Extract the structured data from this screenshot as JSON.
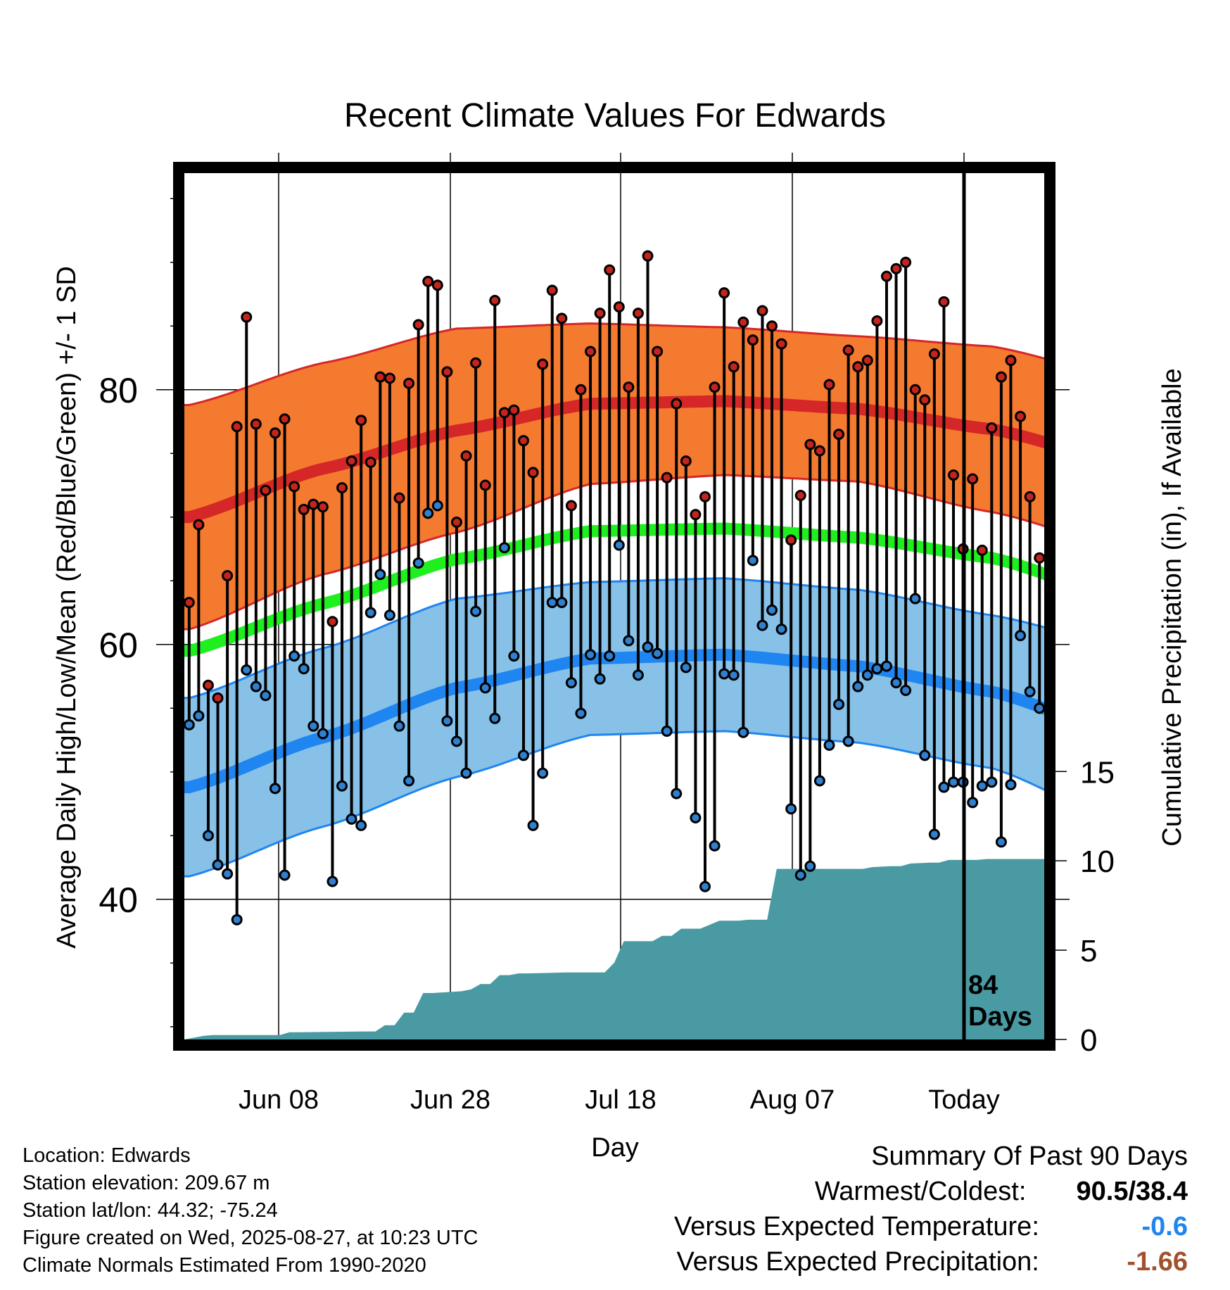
{
  "chart_data": {
    "type": "line",
    "title": "Recent Climate Values For Edwards",
    "xlabel": "Day",
    "ylabel_left": "Average Daily High/Low/Mean (Red/Blue/Green) +/- 1 SD",
    "ylabel_right": "Cumulative Precipitation (in), If Available",
    "x_tick_labels": [
      "Jun 08",
      "Jun 28",
      "Jul 18",
      "Aug 07",
      "Today"
    ],
    "y_ticks_left": [
      40,
      60,
      80
    ],
    "y_ticks_right": [
      0,
      5,
      10,
      15
    ],
    "ylim_left": [
      29,
      97
    ],
    "ylim_right": [
      0,
      48.5
    ],
    "today_marker": "84\nDays",
    "grid": true,
    "normals": {
      "x": [
        0,
        14,
        28,
        42,
        56,
        70,
        84,
        98
      ],
      "high": [
        70,
        73.8,
        76.8,
        78.9,
        79.1,
        78.5,
        76.9,
        74.2
      ],
      "high_sd": [
        8.8,
        8.3,
        8,
        6.3,
        5.8,
        5.7,
        6.5,
        6.7
      ],
      "mean": [
        59.5,
        63.2,
        66.7,
        68.9,
        69.1,
        68.4,
        66.8,
        63.5
      ],
      "low": [
        48.8,
        52.7,
        56.6,
        58.9,
        59.2,
        58.3,
        56.3,
        52.8
      ],
      "low_sd": [
        7,
        7,
        7,
        6,
        6,
        6,
        6,
        7
      ]
    },
    "series": [
      {
        "name": "High",
        "values": [
          63.3,
          69.4,
          56.8,
          55.8,
          65.4,
          77.1,
          85.7,
          77.3,
          72.1,
          76.6,
          77.7,
          72.4,
          70.6,
          71.0,
          70.8,
          61.8,
          72.3,
          74.4,
          77.6,
          74.3,
          81.0,
          80.9,
          71.5,
          80.5,
          85.1,
          88.5,
          88.2,
          81.4,
          69.6,
          74.8,
          82.1,
          72.5,
          87.0,
          78.2,
          78.4,
          76.0,
          73.5,
          82.0,
          87.8,
          85.6,
          70.9,
          80.0,
          83.0,
          86.0,
          89.4,
          86.5,
          80.2,
          86.0,
          90.5,
          83.0,
          73.1,
          78.9,
          74.4,
          70.2,
          71.6,
          80.2,
          87.6,
          81.8,
          85.3,
          83.9,
          86.2,
          85.0,
          83.6,
          68.2,
          71.7,
          75.7,
          75.2,
          80.4,
          76.5,
          83.1,
          81.8,
          82.3,
          85.4,
          88.9,
          89.5,
          90.0,
          80.0,
          79.2,
          82.8,
          86.9,
          73.3,
          67.5,
          73.0,
          67.4,
          77.0,
          81.0,
          82.3,
          77.9,
          71.6,
          66.8
        ]
      },
      {
        "name": "Low",
        "values": [
          53.7,
          54.4,
          45.0,
          42.7,
          42.0,
          38.4,
          58.0,
          56.7,
          56.0,
          48.7,
          41.9,
          59.1,
          58.1,
          53.6,
          53.0,
          41.4,
          48.9,
          46.3,
          45.8,
          62.5,
          65.5,
          62.3,
          53.6,
          49.3,
          66.4,
          70.3,
          70.9,
          54.0,
          52.4,
          49.9,
          62.6,
          56.6,
          54.2,
          67.6,
          59.1,
          51.3,
          45.8,
          49.9,
          63.3,
          63.3,
          57.0,
          54.6,
          59.2,
          57.3,
          59.1,
          67.8,
          60.3,
          57.6,
          59.8,
          59.3,
          53.2,
          48.3,
          58.2,
          46.4,
          41.0,
          44.2,
          57.7,
          57.6,
          53.1,
          66.6,
          61.5,
          62.7,
          61.2,
          47.1,
          41.9,
          42.6,
          49.3,
          52.1,
          55.3,
          52.4,
          56.7,
          57.6,
          58.1,
          58.3,
          57.0,
          56.4,
          63.6,
          51.3,
          45.1,
          48.8,
          49.2,
          49.2,
          47.6,
          48.9,
          49.2,
          44.5,
          49.0,
          60.7,
          56.3,
          55.0
        ]
      },
      {
        "name": "Cumulative Precipitation",
        "x": [
          0,
          2,
          3,
          10,
          11,
          12,
          19,
          20,
          21,
          22,
          23,
          24,
          25,
          26,
          29,
          30,
          31,
          32,
          33,
          34,
          35,
          36,
          40,
          41,
          44,
          45,
          46,
          49,
          50,
          51,
          52,
          53,
          54,
          56,
          57,
          58,
          59,
          60,
          61,
          62,
          63,
          70,
          71,
          72,
          74,
          75,
          76,
          78,
          79,
          80,
          82,
          83,
          84,
          89
        ],
        "values": [
          0,
          0.2,
          0.25,
          0.25,
          0.4,
          0.4,
          0.45,
          0.45,
          0.8,
          0.8,
          1.5,
          1.5,
          2.6,
          2.6,
          2.7,
          2.8,
          3.1,
          3.1,
          3.6,
          3.6,
          3.7,
          3.7,
          3.75,
          3.75,
          3.75,
          4.3,
          5.5,
          5.5,
          5.8,
          5.8,
          6.2,
          6.2,
          6.2,
          6.65,
          6.65,
          6.65,
          6.7,
          6.7,
          6.7,
          9.55,
          9.55,
          9.55,
          9.55,
          9.65,
          9.7,
          9.7,
          9.85,
          9.9,
          9.9,
          10.05,
          10.05,
          10.05,
          10.1,
          10.1
        ]
      }
    ]
  },
  "footer": {
    "location": "Location: Edwards",
    "elevation": "Station elevation: 209.67 m",
    "latlon": "Station lat/lon: 44.32; -75.24",
    "created": "Figure created on Wed, 2025-08-27, at 10:23 UTC",
    "normals": "Climate Normals Estimated From 1990-2020"
  },
  "summary": {
    "heading": "Summary Of Past 90 Days",
    "warmest_label": "Warmest/Coldest:",
    "warmest_value": "90.5/38.4",
    "temp_label": "Versus Expected Temperature:",
    "temp_value": "-0.6",
    "precip_label": "Versus Expected Precipitation:",
    "precip_value": "-1.66"
  },
  "colors": {
    "high_band": "#f47a30",
    "high_line": "#d62728",
    "mean_line": "#1fef1f",
    "low_band": "#87c1e8",
    "low_line": "#1f85f0",
    "precip_fill": "#4a9aa3",
    "high_point": "#c3251e",
    "low_point": "#2f80cf",
    "temp_value": "#1f85f0",
    "precip_value": "#a0522d"
  }
}
